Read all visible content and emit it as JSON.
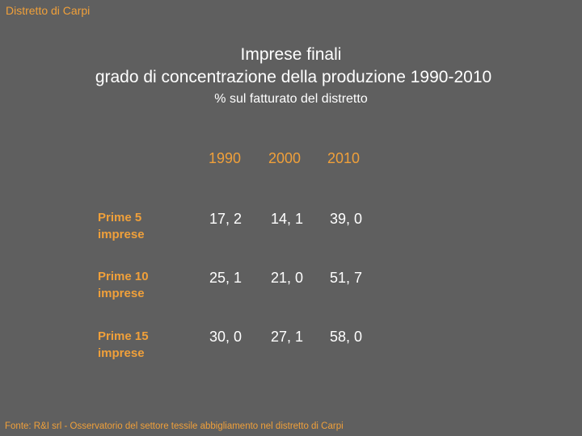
{
  "header": {
    "label": "Distretto di Carpi"
  },
  "title": {
    "line1": "Imprese finali",
    "line2": "grado di concentrazione della produzione 1990-2010",
    "subtitle": "% sul fatturato del distretto"
  },
  "table": {
    "columns": [
      "1990",
      "2000",
      "2010"
    ],
    "rows": [
      {
        "label_line1": "Prime 5",
        "label_line2": "imprese",
        "values": [
          "17, 2",
          "14, 1",
          "39, 0"
        ]
      },
      {
        "label_line1": "Prime 10",
        "label_line2": "imprese",
        "values": [
          "25, 1",
          "21, 0",
          "51, 7"
        ]
      },
      {
        "label_line1": "Prime 15",
        "label_line2": "imprese",
        "values": [
          "30, 0",
          "27, 1",
          "58, 0"
        ]
      }
    ]
  },
  "footer": {
    "source": "Fonte: R&I srl - Osservatorio del settore tessile abbigliamento nel distretto di Carpi"
  },
  "colors": {
    "background": "#5f5f5f",
    "accent": "#f0a03a",
    "text": "#ffffff"
  }
}
